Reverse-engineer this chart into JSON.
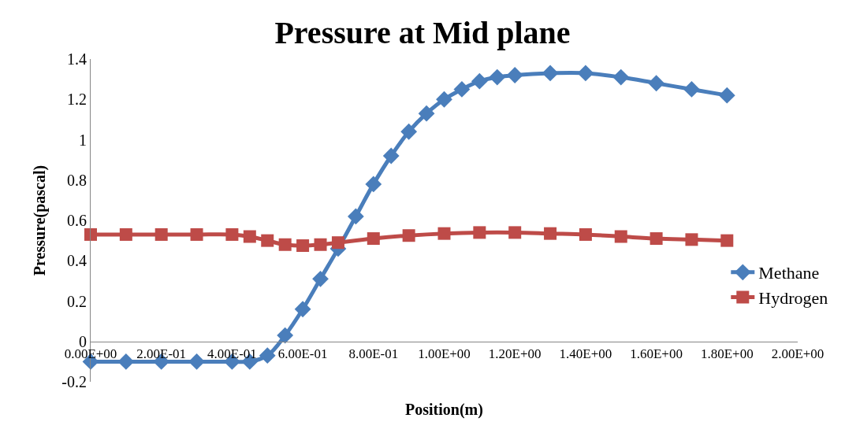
{
  "chart_data": {
    "type": "line",
    "title": "Pressure at Mid plane",
    "xlabel": "Position(m)",
    "ylabel": "Pressure(pascal)",
    "xlim": [
      0,
      2
    ],
    "xticks": [
      {
        "value": 0,
        "label": "0.00E+00"
      },
      {
        "value": 0.2,
        "label": "2.00E-01"
      },
      {
        "value": 0.4,
        "label": "4.00E-01"
      },
      {
        "value": 0.6,
        "label": "6.00E-01"
      },
      {
        "value": 0.8,
        "label": "8.00E-01"
      },
      {
        "value": 1.0,
        "label": "1.00E+00"
      },
      {
        "value": 1.2,
        "label": "1.20E+00"
      },
      {
        "value": 1.4,
        "label": "1.40E+00"
      },
      {
        "value": 1.6,
        "label": "1.60E+00"
      },
      {
        "value": 1.8,
        "label": "1.80E+00"
      },
      {
        "value": 2.0,
        "label": "2.00E+00"
      }
    ],
    "ylim": [
      -0.2,
      1.4
    ],
    "yticks": [
      -0.2,
      0,
      0.2,
      0.4,
      0.6,
      0.8,
      1,
      1.2,
      1.4
    ],
    "legend": "right",
    "line_style": "solid",
    "series": [
      {
        "name": "Methane",
        "color": "#4a7ebb",
        "marker": "diamond",
        "x": [
          0,
          0.1,
          0.2,
          0.3,
          0.4,
          0.45,
          0.5,
          0.55,
          0.6,
          0.65,
          0.7,
          0.75,
          0.8,
          0.85,
          0.9,
          0.95,
          1.0,
          1.05,
          1.1,
          1.15,
          1.2,
          1.3,
          1.4,
          1.5,
          1.6,
          1.7,
          1.8
        ],
        "values": [
          -0.1,
          -0.1,
          -0.1,
          -0.1,
          -0.1,
          -0.1,
          -0.07,
          0.03,
          0.16,
          0.31,
          0.46,
          0.62,
          0.78,
          0.92,
          1.04,
          1.13,
          1.2,
          1.25,
          1.29,
          1.31,
          1.32,
          1.33,
          1.33,
          1.31,
          1.28,
          1.25,
          1.22
        ]
      },
      {
        "name": "Hydrogen",
        "color": "#be4b48",
        "marker": "square",
        "x": [
          0,
          0.1,
          0.2,
          0.3,
          0.4,
          0.45,
          0.5,
          0.55,
          0.6,
          0.65,
          0.7,
          0.8,
          0.9,
          1.0,
          1.1,
          1.2,
          1.3,
          1.4,
          1.5,
          1.6,
          1.7,
          1.8
        ],
        "values": [
          0.53,
          0.53,
          0.53,
          0.53,
          0.53,
          0.52,
          0.5,
          0.48,
          0.475,
          0.48,
          0.49,
          0.51,
          0.525,
          0.535,
          0.54,
          0.54,
          0.535,
          0.53,
          0.52,
          0.51,
          0.505,
          0.5
        ]
      }
    ]
  }
}
